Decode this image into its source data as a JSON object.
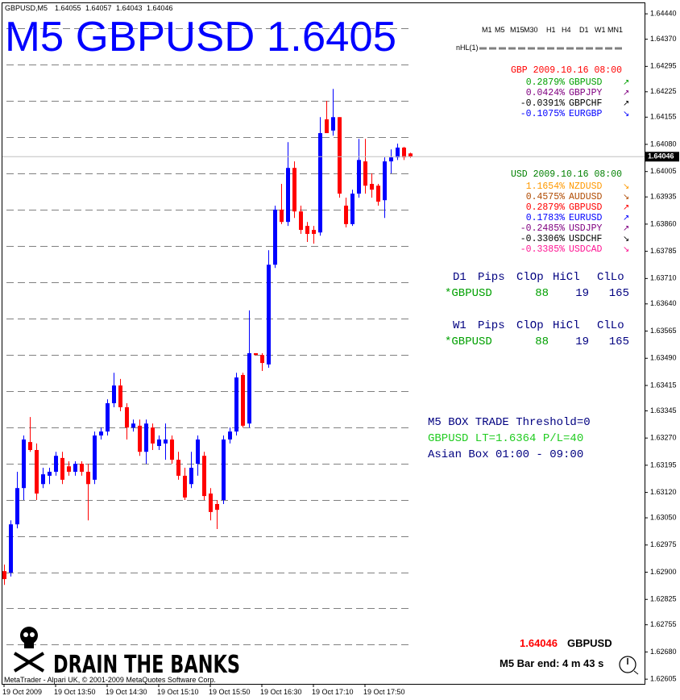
{
  "chart_data": {
    "type": "candlestick",
    "categories": [
      "19 Oct 2009",
      null,
      null,
      null,
      null,
      null,
      null,
      null,
      "19 Oct 13:50",
      null,
      null,
      null,
      null,
      null,
      null,
      null,
      "19 Oct 14:30",
      null,
      null,
      null,
      null,
      null,
      null,
      null,
      "19 Oct 15:10",
      null,
      null,
      null,
      null,
      null,
      null,
      null,
      "19 Oct 15:50",
      null,
      null,
      null,
      null,
      null,
      null,
      null,
      "19 Oct 16:30",
      null,
      null,
      null,
      null,
      null,
      null,
      null,
      "19 Oct 17:10",
      null,
      null,
      null,
      null,
      null,
      null,
      null,
      "19 Oct 17:50",
      null,
      null,
      null,
      null,
      null,
      null,
      null
    ],
    "open": [
      1.62903,
      1.62899,
      1.63032,
      1.63132,
      1.63259,
      1.63237,
      1.63143,
      1.63166,
      1.63177,
      1.63215,
      1.63192,
      1.63177,
      1.63199,
      1.63177,
      1.63155,
      1.63277,
      1.63288,
      1.63366,
      1.63415,
      1.63355,
      1.63299,
      1.63304,
      1.63232,
      1.63299,
      1.63248,
      1.63255,
      1.63266,
      1.6321,
      1.63166,
      1.63143,
      1.63199,
      1.63221,
      1.63117,
      1.63088,
      1.63099,
      1.63266,
      1.63288,
      1.63444,
      1.6331,
      1.63504,
      1.63499,
      1.63473,
      1.63748,
      1.639,
      1.63866,
      1.64015,
      1.63895,
      1.63855,
      1.63844,
      1.63837,
      1.64149,
      1.64118,
      1.64155,
      1.63911,
      1.6386,
      1.63944,
      1.64033,
      1.63971,
      1.63966,
      1.63926,
      1.64033,
      1.64044,
      1.64071,
      1.64055
    ],
    "high": [
      1.62921,
      1.63043,
      1.63177,
      1.63277,
      1.63328,
      1.63255,
      1.63188,
      1.63188,
      1.63232,
      1.63232,
      1.63206,
      1.63206,
      1.63206,
      1.63199,
      1.63288,
      1.63299,
      1.63377,
      1.6345,
      1.63433,
      1.63366,
      1.63321,
      1.63321,
      1.63321,
      1.6331,
      1.63277,
      1.6331,
      1.63277,
      1.63232,
      1.63188,
      1.63232,
      1.63277,
      1.63232,
      1.63132,
      1.63099,
      1.63277,
      1.63299,
      1.6345,
      1.6345,
      1.63622,
      1.63504,
      1.63504,
      1.63788,
      1.63911,
      1.63971,
      1.64086,
      1.64033,
      1.63911,
      1.63866,
      1.63855,
      1.64155,
      1.642,
      1.64233,
      1.64155,
      1.63933,
      1.63955,
      1.64095,
      1.64095,
      1.64,
      1.63971,
      1.64044,
      1.64066,
      1.64082,
      1.64073,
      1.64057
    ],
    "low": [
      1.62865,
      1.62888,
      1.63021,
      1.63099,
      1.63232,
      1.63099,
      1.63132,
      1.63143,
      1.63166,
      1.63143,
      1.63166,
      1.63166,
      1.63166,
      1.63043,
      1.63143,
      1.63266,
      1.63277,
      1.63355,
      1.63344,
      1.63266,
      1.63288,
      1.63221,
      1.63199,
      1.63237,
      1.63237,
      1.6321,
      1.63199,
      1.63155,
      1.63099,
      1.63132,
      1.63166,
      1.63099,
      1.63043,
      1.63019,
      1.63088,
      1.63255,
      1.63277,
      1.63299,
      1.63299,
      1.63499,
      1.63455,
      1.63464,
      1.63739,
      1.6386,
      1.63855,
      1.63877,
      1.63833,
      1.63811,
      1.63806,
      1.63828,
      1.64111,
      1.64104,
      1.63933,
      1.63851,
      1.63855,
      1.63933,
      1.63944,
      1.63933,
      1.63911,
      1.63877,
      1.64,
      1.64037,
      1.64037,
      1.64043
    ],
    "close": [
      1.62881,
      1.63032,
      1.63132,
      1.63266,
      1.63237,
      1.63117,
      1.6317,
      1.63177,
      1.63221,
      1.63155,
      1.63177,
      1.63199,
      1.63177,
      1.63143,
      1.63277,
      1.63288,
      1.63366,
      1.63415,
      1.63355,
      1.63299,
      1.6331,
      1.63232,
      1.6331,
      1.63255,
      1.63266,
      1.63266,
      1.6321,
      1.63166,
      1.63106,
      1.63188,
      1.63266,
      1.6311,
      1.63066,
      1.63072,
      1.63266,
      1.63288,
      1.63437,
      1.63304,
      1.63504,
      1.63499,
      1.63477,
      1.63748,
      1.639,
      1.63866,
      1.64015,
      1.63895,
      1.63844,
      1.63833,
      1.63833,
      1.64111,
      1.64111,
      1.64155,
      1.63944,
      1.6386,
      1.63944,
      1.64037,
      1.63966,
      1.63955,
      1.63922,
      1.64033,
      1.64044,
      1.64071,
      1.64044,
      1.64046
    ],
    "up_color": "#0000ff",
    "down_color": "#ff0000",
    "level_color": "#808080",
    "levels": [
      1.644,
      1.643,
      1.642,
      1.641,
      1.64,
      1.639,
      1.638,
      1.637,
      1.636,
      1.635,
      1.634,
      1.633,
      1.632,
      1.631,
      1.63,
      1.629,
      1.628,
      1.627
    ],
    "ylim": [
      1.62592,
      1.64467
    ],
    "yticks": [
      {
        "value": 1.6444,
        "label": "1.64440"
      },
      {
        "value": 1.6437,
        "label": "1.64370"
      },
      {
        "value": 1.64295,
        "label": "1.64295"
      },
      {
        "value": 1.64225,
        "label": "1.64225"
      },
      {
        "value": 1.64155,
        "label": "1.64155"
      },
      {
        "value": 1.6408,
        "label": "1.64080"
      },
      {
        "value": 1.64005,
        "label": "1.64005"
      },
      {
        "value": 1.63935,
        "label": "1.63935"
      },
      {
        "value": 1.6386,
        "label": "1.63860"
      },
      {
        "value": 1.63785,
        "label": "1.63785"
      },
      {
        "value": 1.6371,
        "label": "1.63710"
      },
      {
        "value": 1.6364,
        "label": "1.63640"
      },
      {
        "value": 1.63565,
        "label": "1.63565"
      },
      {
        "value": 1.6349,
        "label": "1.63490"
      },
      {
        "value": 1.63415,
        "label": "1.63415"
      },
      {
        "value": 1.63345,
        "label": "1.63345"
      },
      {
        "value": 1.6327,
        "label": "1.63270"
      },
      {
        "value": 1.63195,
        "label": "1.63195"
      },
      {
        "value": 1.6312,
        "label": "1.63120"
      },
      {
        "value": 1.6305,
        "label": "1.63050"
      },
      {
        "value": 1.62975,
        "label": "1.62975"
      },
      {
        "value": 1.629,
        "label": "1.62900"
      },
      {
        "value": 1.62825,
        "label": "1.62825"
      },
      {
        "value": 1.62755,
        "label": "1.62755"
      },
      {
        "value": 1.6268,
        "label": "1.62680"
      },
      {
        "value": 1.62605,
        "label": "1.62605"
      }
    ]
  },
  "header": {
    "symbol": "GBPUSD,M5"
  },
  "title": "M5 GBPUSD 1.6405",
  "timeframes": [
    "M1",
    "M5",
    "M15",
    "M30",
    "H1",
    "H4",
    "D1",
    "W1",
    "MN1"
  ],
  "nhl_label": "nHL(1)",
  "gbp_block": {
    "title": "GBP 2009.10.16 08:00",
    "color": "#ff0000",
    "rows": [
      {
        "change": "0.2879%",
        "pair": "GBPUSD",
        "arrow": "↗",
        "color": "#00a000"
      },
      {
        "change": "0.0424%",
        "pair": "GBPJPY",
        "arrow": "↗",
        "color": "#800080"
      },
      {
        "change": "-0.0391%",
        "pair": "GBPCHF",
        "arrow": "↗",
        "color": "#000000"
      },
      {
        "change": "-0.1075%",
        "pair": "EURGBP",
        "arrow": "↘",
        "color": "#0000ff"
      }
    ]
  },
  "usd_block": {
    "title": "USD 2009.10.16 08:00",
    "color": "#008000",
    "rows": [
      {
        "change": "1.1654%",
        "pair": "NZDUSD",
        "arrow": "↘",
        "color": "#ff9900"
      },
      {
        "change": "0.4575%",
        "pair": "AUDUSD",
        "arrow": "↘",
        "color": "#b04a00"
      },
      {
        "change": "0.2879%",
        "pair": "GBPUSD",
        "arrow": "↗",
        "color": "#ff0000"
      },
      {
        "change": "0.1783%",
        "pair": "EURUSD",
        "arrow": "↗",
        "color": "#0000ff"
      },
      {
        "change": "-0.2485%",
        "pair": "USDJPY",
        "arrow": "↗",
        "color": "#800080"
      },
      {
        "change": "-0.3306%",
        "pair": "USDCHF",
        "arrow": "↘",
        "color": "#000000"
      },
      {
        "change": "-0.3385%",
        "pair": "USDCAD",
        "arrow": "↘",
        "color": "#ff1493"
      }
    ]
  },
  "pip_tables": [
    {
      "header": [
        "D1",
        "Pips",
        "ClOp",
        "HiCl",
        "ClLo"
      ],
      "row": [
        "*GBPUSD",
        "88",
        "19",
        "165"
      ]
    },
    {
      "header": [
        "W1",
        "Pips",
        "ClOp",
        "HiCl",
        "ClLo"
      ],
      "row": [
        "*GBPUSD",
        "88",
        "19",
        "165"
      ]
    }
  ],
  "box_trade": [
    "M5 BOX TRADE Threshold=0",
    "GBPUSD LT=1.6364 P/L=40",
    "Asian Box 01:00 - 09:00"
  ],
  "price_panel": {
    "pair": "GBPUSD",
    "bar_end": "M5 Bar end: 4 m 43 s"
  },
  "brand": "DRAIN THE BANKS",
  "copyright": "MetaTrader - Alpari UK, © 2001-2009 MetaQuotes Software Corp."
}
